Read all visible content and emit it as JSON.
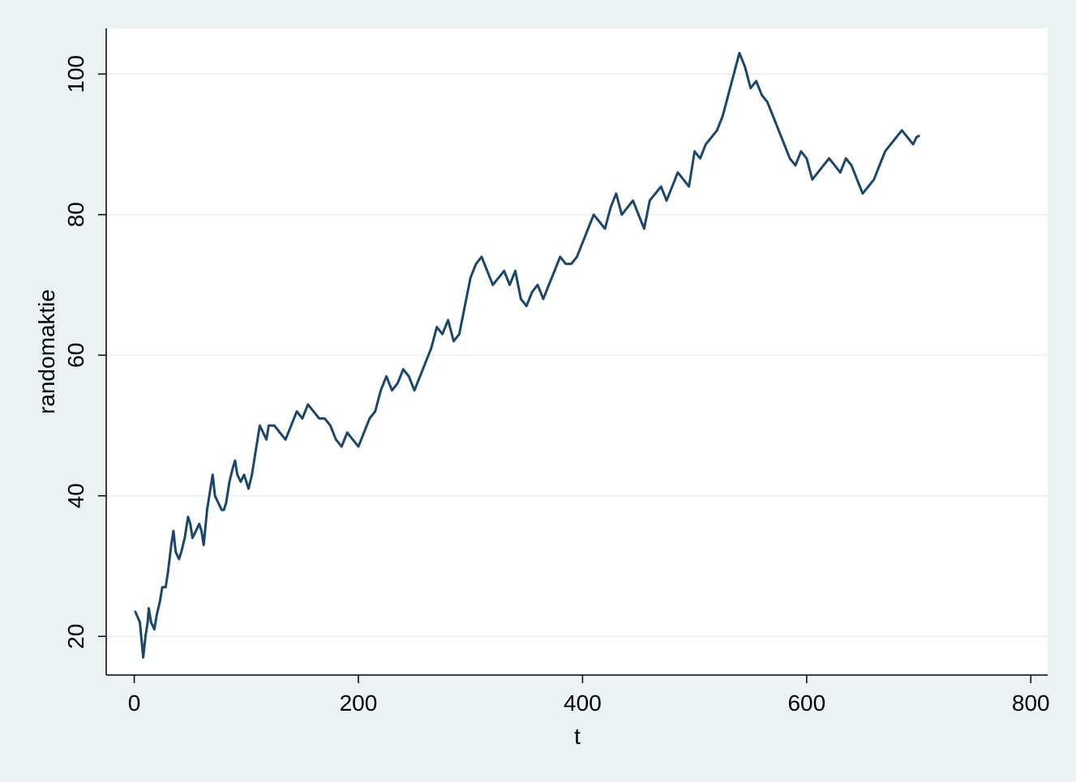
{
  "chart_data": {
    "type": "line",
    "xlabel": "t",
    "ylabel": "randomaktie",
    "xlim": [
      -25,
      815
    ],
    "ylim": [
      14.5,
      106.5
    ],
    "x_ticks": [
      0,
      200,
      400,
      600,
      800
    ],
    "y_ticks": [
      20,
      40,
      60,
      80,
      100
    ],
    "grid": true,
    "legend": "none",
    "colors": {
      "background": "#eaf2f3",
      "plot_area": "#ffffff",
      "line": "#1a476f",
      "grid": "#eaf2f3"
    },
    "series": [
      {
        "x": [
          1,
          5,
          8,
          10,
          12,
          13,
          15,
          18,
          20,
          23,
          25,
          28,
          30,
          33,
          35,
          37,
          40,
          42,
          45,
          48,
          50,
          52,
          55,
          58,
          60,
          62,
          65,
          68,
          70,
          72,
          75,
          78,
          80,
          82,
          85,
          88,
          90,
          92,
          95,
          98,
          100,
          102,
          105,
          108,
          110,
          112,
          115,
          118,
          120,
          125,
          130,
          135,
          140,
          145,
          150,
          155,
          160,
          165,
          170,
          175,
          180,
          185,
          190,
          195,
          200,
          205,
          210,
          215,
          220,
          225,
          230,
          235,
          240,
          245,
          250,
          255,
          260,
          265,
          270,
          275,
          280,
          285,
          290,
          295,
          300,
          305,
          310,
          315,
          320,
          325,
          330,
          335,
          340,
          345,
          350,
          355,
          360,
          365,
          370,
          375,
          380,
          385,
          390,
          395,
          400,
          405,
          410,
          415,
          420,
          425,
          430,
          435,
          440,
          445,
          450,
          455,
          460,
          465,
          470,
          475,
          480,
          485,
          490,
          495,
          500,
          505,
          510,
          515,
          520,
          525,
          530,
          535,
          540,
          545,
          550,
          555,
          560,
          565,
          570,
          575,
          580,
          585,
          590,
          595,
          600,
          605,
          610,
          615,
          620,
          625,
          630,
          635,
          640,
          645,
          650,
          655,
          660,
          665,
          670,
          675,
          680,
          685,
          690,
          695,
          698,
          700
        ],
        "y": [
          23.5,
          22,
          17,
          20,
          22,
          24,
          22,
          21,
          23,
          25,
          27,
          27,
          29,
          33,
          35,
          32,
          31,
          32,
          34,
          37,
          36,
          34,
          35,
          36,
          35,
          33,
          38,
          41,
          43,
          40,
          39,
          38,
          38,
          39,
          42,
          44,
          45,
          43,
          42,
          43,
          42,
          41,
          43,
          46,
          48,
          50,
          49,
          48,
          50,
          50,
          49,
          48,
          50,
          52,
          51,
          53,
          52,
          51,
          51,
          50,
          48,
          47,
          49,
          48,
          47,
          49,
          51,
          52,
          55,
          57,
          55,
          56,
          58,
          57,
          55,
          57,
          59,
          61,
          64,
          63,
          65,
          62,
          63,
          67,
          71,
          73,
          74,
          72,
          70,
          71,
          72,
          70,
          72,
          68,
          67,
          69,
          70,
          68,
          70,
          72,
          74,
          73,
          73,
          74,
          76,
          78,
          80,
          79,
          78,
          81,
          83,
          80,
          81,
          82,
          80,
          78,
          82,
          83,
          84,
          82,
          84,
          86,
          85,
          84,
          89,
          88,
          90,
          91,
          92,
          94,
          97,
          100,
          103,
          101,
          98,
          99,
          97,
          96,
          94,
          92,
          90,
          88,
          87,
          89,
          88,
          85,
          86,
          87,
          88,
          87,
          86,
          88,
          87,
          85,
          83,
          84,
          85,
          87,
          89,
          90,
          91,
          92,
          91,
          90,
          91,
          91.2
        ]
      }
    ]
  }
}
